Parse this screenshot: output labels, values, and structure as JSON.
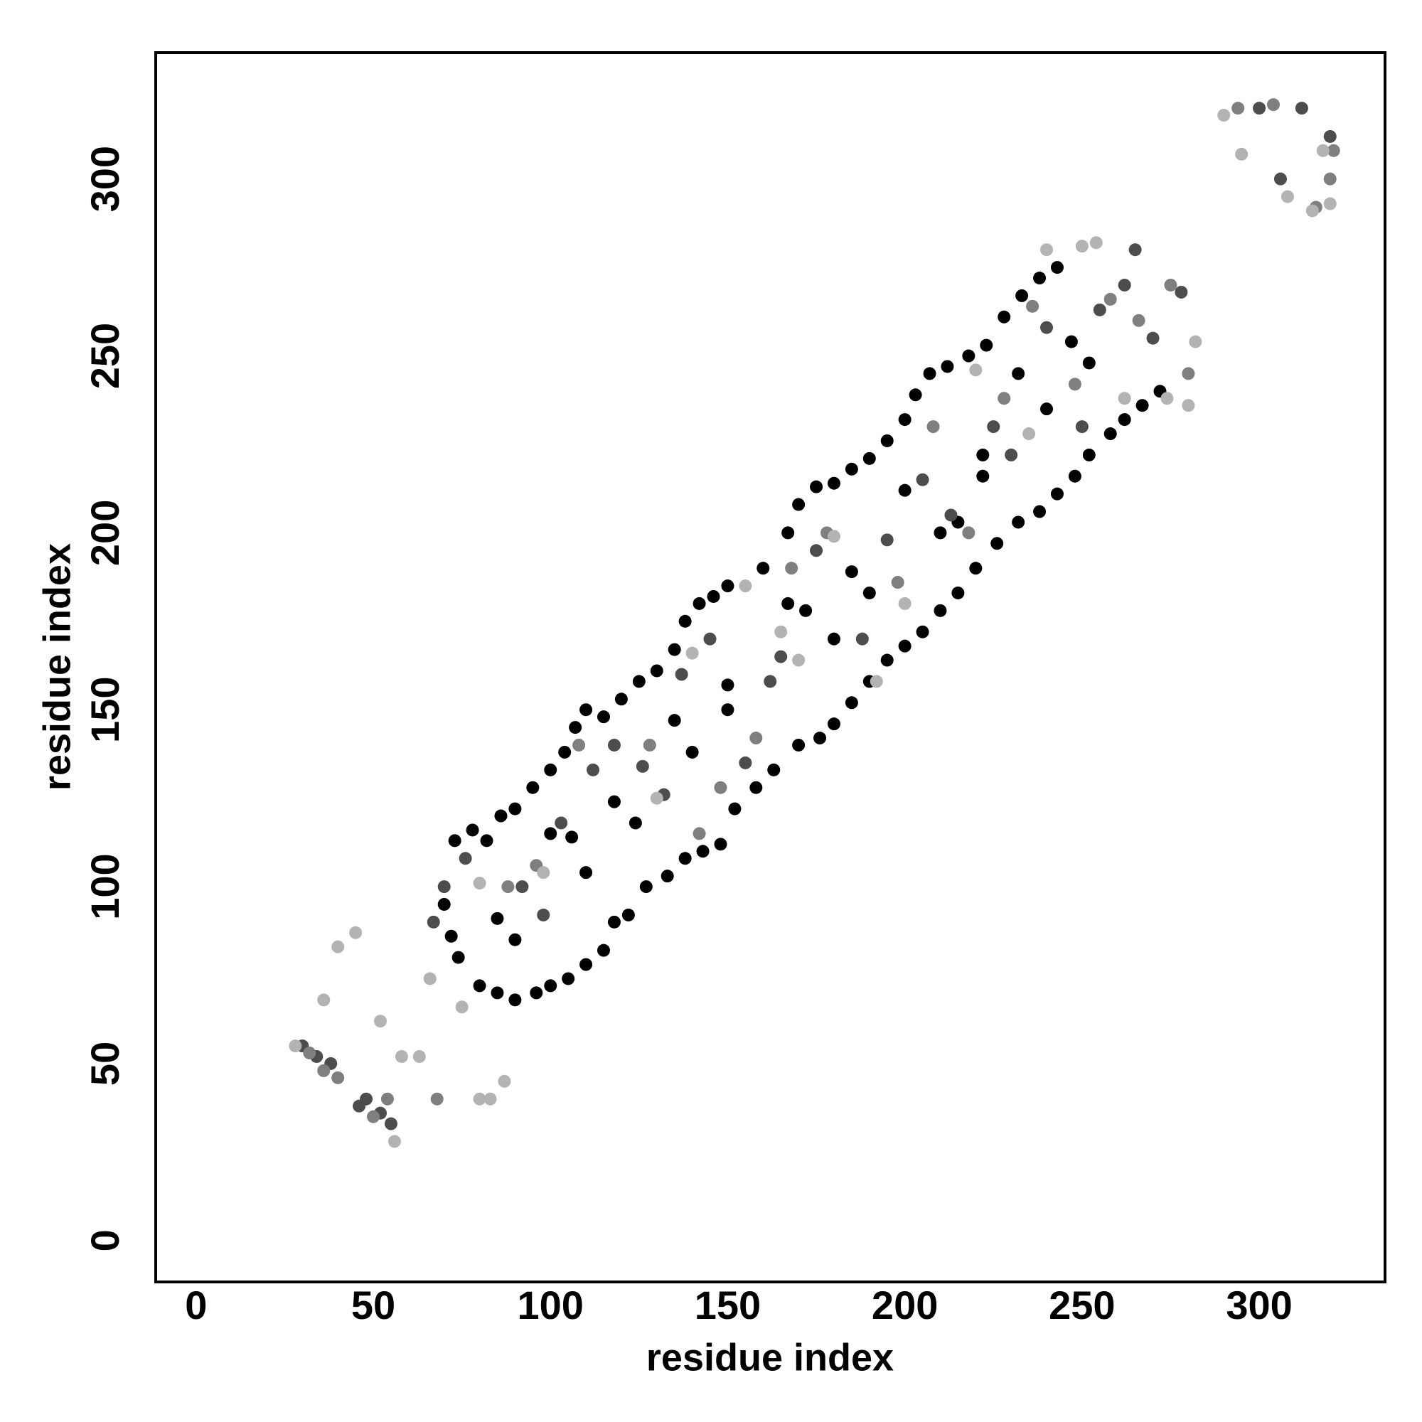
{
  "chart_data": {
    "type": "scatter",
    "xlabel": "residue index",
    "ylabel": "residue index",
    "xlim": [
      -11.4,
      335.5
    ],
    "ylim": [
      -11.7,
      335.7
    ],
    "xticks": [
      0,
      50,
      100,
      150,
      200,
      250,
      300
    ],
    "yticks": [
      0,
      50,
      100,
      150,
      200,
      250,
      300
    ],
    "grid": false,
    "series": [
      {
        "color": "#000000",
        "x": [
          73,
          78,
          82,
          86,
          90,
          95,
          100,
          104,
          107,
          110,
          115,
          120,
          125,
          130,
          135,
          138,
          142,
          146,
          150,
          160,
          167,
          170,
          175,
          180,
          185,
          190,
          195,
          200,
          203,
          207,
          212,
          218,
          223,
          228,
          233,
          238,
          243,
          70,
          72,
          74,
          80,
          85,
          90,
          96,
          100,
          105,
          110,
          115,
          118,
          122,
          127,
          133,
          138,
          143,
          148,
          152,
          158,
          163,
          170,
          176,
          180,
          185,
          190,
          195,
          200,
          205,
          210,
          215,
          220,
          226,
          232,
          238,
          243,
          248,
          252,
          258,
          262,
          267,
          272,
          85,
          90,
          100,
          106,
          110,
          118,
          124,
          135,
          140,
          150,
          150,
          167,
          172,
          180,
          185,
          190,
          200,
          210,
          215,
          222,
          222,
          232,
          240,
          247,
          252
        ],
        "values": [
          113,
          116,
          113,
          120,
          122,
          128,
          133,
          138,
          145,
          150,
          148,
          153,
          158,
          161,
          167,
          175,
          180,
          182,
          185,
          190,
          200,
          208,
          213,
          214,
          218,
          221,
          226,
          232,
          239,
          245,
          247,
          250,
          253,
          261,
          267,
          272,
          275,
          95,
          86,
          80,
          72,
          70,
          68,
          70,
          72,
          74,
          78,
          82,
          90,
          92,
          100,
          103,
          108,
          110,
          112,
          122,
          128,
          133,
          140,
          142,
          146,
          152,
          158,
          164,
          168,
          172,
          178,
          183,
          190,
          197,
          203,
          206,
          211,
          216,
          222,
          228,
          232,
          236,
          240,
          91,
          85,
          115,
          114,
          104,
          124,
          118,
          147,
          138,
          157,
          150,
          180,
          178,
          170,
          189,
          183,
          212,
          200,
          203,
          216,
          222,
          245,
          235,
          254,
          248
        ]
      },
      {
        "color": "#4d4d4d",
        "x": [
          30,
          34,
          38,
          46,
          48,
          52,
          55,
          67,
          70,
          76,
          92,
          98,
          103,
          112,
          118,
          126,
          132,
          137,
          145,
          155,
          162,
          165,
          175,
          188,
          195,
          205,
          213,
          225,
          230,
          240,
          250,
          255,
          262,
          265,
          270,
          278,
          300,
          306,
          312,
          320
        ],
        "values": [
          55,
          52,
          50,
          38,
          40,
          36,
          33,
          90,
          100,
          108,
          100,
          92,
          118,
          133,
          140,
          134,
          126,
          160,
          170,
          135,
          158,
          165,
          195,
          170,
          198,
          215,
          205,
          230,
          222,
          258,
          230,
          263,
          270,
          280,
          255,
          268,
          320,
          300,
          320,
          312
        ]
      },
      {
        "color": "#7f7f7f",
        "x": [
          32,
          36,
          40,
          50,
          54,
          68,
          88,
          96,
          108,
          128,
          142,
          148,
          158,
          168,
          178,
          198,
          208,
          218,
          228,
          236,
          248,
          258,
          266,
          275,
          280,
          294,
          304,
          316,
          320,
          321
        ],
        "values": [
          53,
          48,
          46,
          35,
          40,
          40,
          100,
          106,
          140,
          140,
          115,
          128,
          142,
          190,
          200,
          186,
          230,
          200,
          238,
          264,
          242,
          266,
          260,
          270,
          245,
          320,
          321,
          292,
          300,
          308
        ]
      },
      {
        "color": "#b3b3b3",
        "x": [
          28,
          40,
          36,
          45,
          52,
          58,
          63,
          56,
          66,
          75,
          80,
          83,
          87,
          80,
          98,
          130,
          140,
          155,
          165,
          170,
          180,
          192,
          200,
          220,
          235,
          240,
          250,
          254,
          262,
          274,
          280,
          282,
          290,
          295,
          308,
          315,
          320,
          318
        ],
        "values": [
          55,
          83,
          68,
          87,
          62,
          52,
          52,
          28,
          74,
          66,
          40,
          40,
          45,
          101,
          104,
          125,
          166,
          185,
          172,
          164,
          199,
          158,
          180,
          246,
          228,
          280,
          281,
          282,
          238,
          238,
          236,
          254,
          318,
          307,
          295,
          291,
          293,
          308
        ]
      }
    ]
  }
}
